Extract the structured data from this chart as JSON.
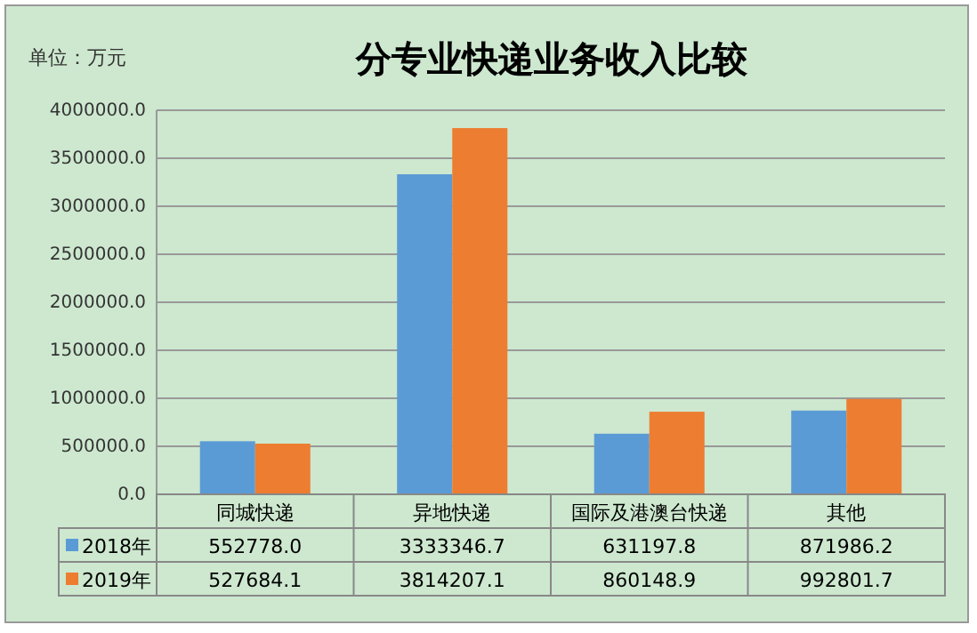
{
  "chart_data": {
    "type": "bar",
    "title": "分专业快递业务收入比较",
    "ylabel": "单位：万元",
    "categories": [
      "同城快递",
      "异地快递",
      "国际及港澳台快递",
      "其他"
    ],
    "series": [
      {
        "name": "2018年",
        "color": "#5b9bd5",
        "values": [
          552778.0,
          3333346.7,
          631197.8,
          871986.2
        ],
        "value_labels": [
          "552778.0",
          "3333346.7",
          "631197.8",
          "871986.2"
        ]
      },
      {
        "name": "2019年",
        "color": "#ed7d31",
        "values": [
          527684.1,
          3814207.1,
          860148.9,
          992801.7
        ],
        "value_labels": [
          "527684.1",
          "3814207.1",
          "860148.9",
          "992801.7"
        ]
      }
    ],
    "ylim": [
      0,
      4000000
    ],
    "yticks": [
      {
        "value": 0,
        "label": "0.0"
      },
      {
        "value": 500000,
        "label": "500000.0"
      },
      {
        "value": 1000000,
        "label": "1000000.0"
      },
      {
        "value": 1500000,
        "label": "1500000.0"
      },
      {
        "value": 2000000,
        "label": "2000000.0"
      },
      {
        "value": 2500000,
        "label": "2500000.0"
      },
      {
        "value": 3000000,
        "label": "3000000.0"
      },
      {
        "value": 3500000,
        "label": "3500000.0"
      },
      {
        "value": 4000000,
        "label": "4000000.0"
      }
    ],
    "grid": "y",
    "legend": "bottom"
  }
}
